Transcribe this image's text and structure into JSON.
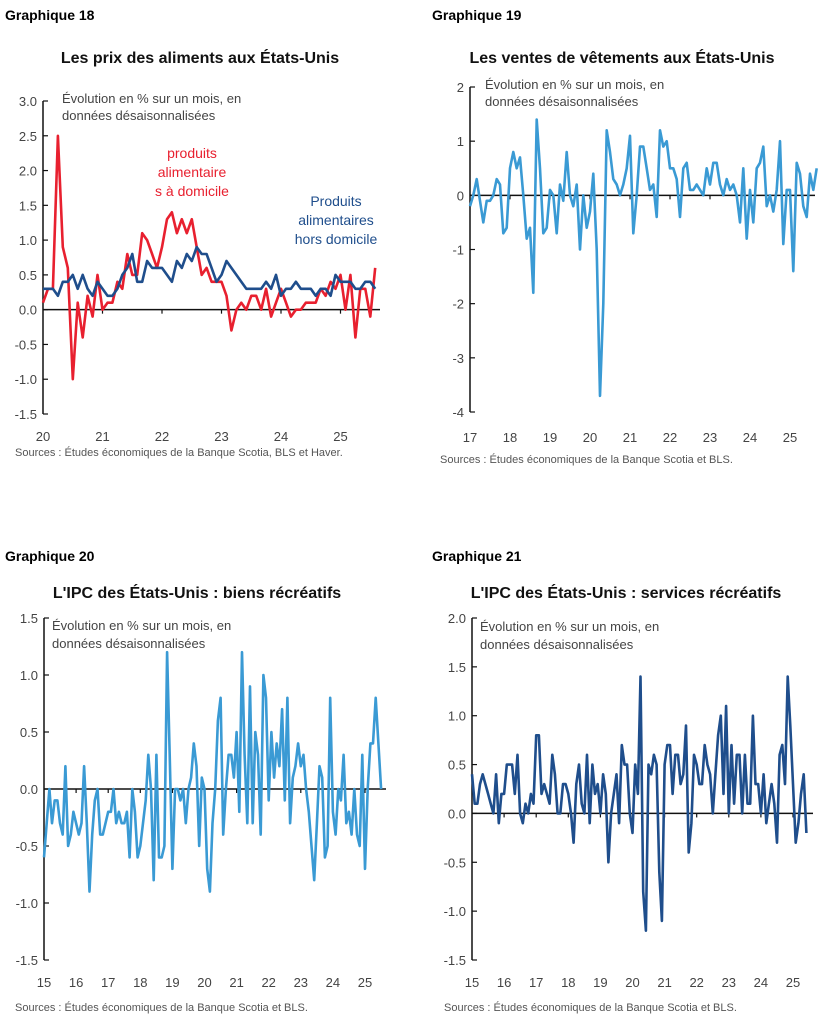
{
  "chart_data": [
    {
      "type": "line",
      "heading": "Graphique 18",
      "title": "Les prix des aliments aux États-Unis",
      "subtitle_lines": [
        "Évolution en % sur un mois, en",
        "données désaisonnalisées"
      ],
      "source": "Sources : Études économiques de la Banque Scotia, BLS et Haver.",
      "x_start": "2020-01",
      "x_frequency": "monthly",
      "x_tick_labels": [
        "20",
        "21",
        "22",
        "23",
        "24",
        "25"
      ],
      "y_tick_labels": [
        "3.0",
        "2.5",
        "2.0",
        "1.5",
        "1.0",
        "0.5",
        "0.0",
        "-0.5",
        "-1.0",
        "-1.5"
      ],
      "ylim": [
        -1.5,
        3.0
      ],
      "grid": false,
      "series": [
        {
          "name_lines": [
            "produits",
            "alimentaire",
            "s à domicile"
          ],
          "color": "#e8202f",
          "values": [
            0.1,
            0.3,
            0.3,
            2.5,
            0.9,
            0.6,
            -1.0,
            0.1,
            -0.4,
            0.2,
            -0.1,
            0.5,
            0.0,
            0.1,
            0.1,
            0.4,
            0.3,
            0.8,
            0.5,
            0.5,
            1.1,
            1.0,
            0.8,
            0.6,
            0.9,
            1.3,
            1.4,
            1.1,
            1.3,
            1.1,
            1.3,
            0.9,
            0.5,
            0.6,
            0.4,
            0.4,
            0.4,
            0.2,
            -0.3,
            0.0,
            0.1,
            0.0,
            0.2,
            0.2,
            0.0,
            0.3,
            -0.1,
            0.1,
            0.3,
            0.1,
            -0.1,
            0.0,
            0.0,
            0.1,
            0.1,
            0.1,
            0.3,
            0.2,
            0.4,
            0.3,
            0.5,
            0.0,
            0.5,
            -0.4,
            0.3,
            0.3,
            -0.1,
            0.6
          ]
        },
        {
          "name_lines": [
            "Produits",
            "alimentaires",
            "hors domicile"
          ],
          "color": "#1f4e8c",
          "values": [
            0.3,
            0.3,
            0.3,
            0.2,
            0.4,
            0.4,
            0.5,
            0.3,
            0.5,
            0.3,
            0.2,
            0.4,
            0.3,
            0.2,
            0.2,
            0.3,
            0.5,
            0.6,
            0.8,
            0.4,
            0.4,
            0.7,
            0.6,
            0.6,
            0.6,
            0.5,
            0.4,
            0.7,
            0.6,
            0.8,
            0.7,
            0.9,
            0.8,
            0.8,
            0.6,
            0.4,
            0.5,
            0.7,
            0.6,
            0.5,
            0.4,
            0.3,
            0.3,
            0.3,
            0.3,
            0.4,
            0.3,
            0.5,
            0.2,
            0.3,
            0.3,
            0.4,
            0.3,
            0.3,
            0.3,
            0.2,
            0.3,
            0.3,
            0.2,
            0.5,
            0.4,
            0.4,
            0.4,
            0.3,
            0.3,
            0.4,
            0.4,
            0.3
          ]
        }
      ]
    },
    {
      "type": "line",
      "heading": "Graphique 19",
      "title": "Les ventes de vêtements aux États-Unis",
      "subtitle_lines": [
        "Évolution en % sur un mois, en",
        "données désaisonnalisées"
      ],
      "source": "Sources : Études économiques de la Banque Scotia et BLS.",
      "x_start": "2017-01",
      "x_frequency": "monthly",
      "x_tick_labels": [
        "17",
        "18",
        "19",
        "20",
        "21",
        "22",
        "23",
        "24",
        "25"
      ],
      "y_tick_labels": [
        "2",
        "1",
        "0",
        "-1",
        "-2",
        "-3",
        "-4"
      ],
      "ylim": [
        -4,
        2
      ],
      "grid": false,
      "series": [
        {
          "color": "#3a9ad4",
          "values": [
            -0.2,
            0.0,
            0.3,
            -0.1,
            -0.5,
            -0.1,
            -0.1,
            0.0,
            0.3,
            0.2,
            -0.7,
            -0.6,
            0.5,
            0.8,
            0.5,
            0.7,
            0.0,
            -0.8,
            -0.6,
            -1.8,
            1.4,
            0.5,
            -0.7,
            -0.6,
            0.1,
            0.0,
            -0.7,
            0.2,
            -0.1,
            0.8,
            0.0,
            -0.2,
            0.2,
            -1.0,
            0.0,
            -0.6,
            -0.3,
            0.4,
            -1.0,
            -3.7,
            -2.0,
            1.2,
            0.8,
            0.3,
            0.2,
            0.0,
            0.2,
            0.5,
            1.1,
            -0.7,
            0.0,
            0.9,
            0.9,
            0.5,
            0.1,
            0.2,
            -0.4,
            1.2,
            0.9,
            1.0,
            0.5,
            0.5,
            0.3,
            -0.4,
            0.5,
            0.6,
            0.1,
            0.1,
            0.2,
            0.1,
            0.0,
            0.5,
            0.2,
            0.6,
            0.6,
            0.2,
            0.0,
            0.3,
            0.1,
            0.2,
            0.0,
            -0.5,
            0.5,
            -0.8,
            0.1,
            -0.5,
            0.5,
            0.6,
            0.9,
            -0.2,
            0.0,
            -0.3,
            0.1,
            1.0,
            -0.9,
            0.1,
            0.1,
            -1.4,
            0.6,
            0.4,
            -0.2,
            -0.4,
            0.4,
            0.1,
            0.5
          ]
        }
      ]
    },
    {
      "type": "line",
      "heading": "Graphique 20",
      "title": "L'IPC des États-Unis : biens récréatifs",
      "subtitle_lines": [
        "Évolution en % sur un mois, en",
        "données désaisonnalisées"
      ],
      "source": "Sources : Études économiques de la Banque Scotia et BLS.",
      "x_start": "2015-01",
      "x_frequency": "monthly",
      "x_tick_labels": [
        "15",
        "16",
        "17",
        "18",
        "19",
        "20",
        "21",
        "22",
        "23",
        "24",
        "25"
      ],
      "y_tick_labels": [
        "1.5",
        "1.0",
        "0.5",
        "0.0",
        "-0.5",
        "-1.0",
        "-1.5"
      ],
      "ylim": [
        -1.5,
        1.5
      ],
      "grid": false,
      "series": [
        {
          "color": "#3a9ad4",
          "values": [
            -0.6,
            -0.3,
            0.0,
            -0.3,
            -0.1,
            -0.1,
            -0.3,
            -0.4,
            0.2,
            -0.5,
            -0.4,
            -0.2,
            -0.3,
            -0.4,
            -0.3,
            0.2,
            -0.3,
            -0.9,
            -0.4,
            -0.1,
            0.0,
            -0.4,
            -0.4,
            -0.3,
            -0.2,
            -0.2,
            0.0,
            -0.3,
            -0.2,
            -0.3,
            -0.3,
            -0.2,
            -0.6,
            0.0,
            -0.2,
            -0.6,
            -0.5,
            -0.3,
            -0.1,
            0.3,
            0.0,
            -0.8,
            0.3,
            -0.6,
            -0.6,
            -0.5,
            1.2,
            0.3,
            -0.7,
            0.0,
            0.0,
            -0.1,
            0.0,
            -0.3,
            0.0,
            0.1,
            0.4,
            0.2,
            -0.5,
            0.1,
            0.0,
            -0.7,
            -0.9,
            -0.3,
            0.0,
            0.6,
            0.8,
            -0.4,
            0.0,
            0.3,
            0.3,
            0.1,
            0.5,
            -0.2,
            1.2,
            0.3,
            -0.3,
            0.9,
            -0.3,
            0.5,
            0.3,
            -0.4,
            1.0,
            0.8,
            -0.1,
            0.5,
            0.1,
            0.4,
            0.2,
            0.7,
            -0.1,
            0.8,
            -0.3,
            0.1,
            0.2,
            0.4,
            0.2,
            0.3,
            0.0,
            -0.2,
            -0.5,
            -0.8,
            -0.3,
            0.2,
            0.1,
            -0.6,
            -0.5,
            0.8,
            -0.2,
            -0.4,
            0.0,
            -0.1,
            0.3,
            -0.3,
            -0.2,
            -0.4,
            0.0,
            -0.4,
            -0.5,
            0.3,
            -0.7,
            0.0,
            0.4,
            0.4,
            0.8,
            0.4,
            0.0
          ]
        }
      ]
    },
    {
      "type": "line",
      "heading": "Graphique 21",
      "title": "L'IPC des États-Unis : services récréatifs",
      "subtitle_lines": [
        "Évolution en % sur un mois, en",
        "données désaisonnalisées"
      ],
      "source": "Sources : Études économiques de la Banque Scotia et BLS.",
      "x_start": "2015-01",
      "x_frequency": "monthly",
      "x_tick_labels": [
        "15",
        "16",
        "17",
        "18",
        "19",
        "20",
        "21",
        "22",
        "23",
        "24",
        "25"
      ],
      "y_tick_labels": [
        "2.0",
        "1.5",
        "1.0",
        "0.5",
        "0.0",
        "-0.5",
        "-1.0",
        "-1.5"
      ],
      "ylim": [
        -1.5,
        2.0
      ],
      "grid": false,
      "series": [
        {
          "color": "#1f4e8c",
          "values": [
            0.4,
            0.1,
            0.1,
            0.3,
            0.4,
            0.3,
            0.2,
            0.1,
            0.0,
            0.4,
            -0.1,
            0.2,
            0.2,
            0.5,
            0.5,
            0.5,
            0.2,
            0.6,
            0.0,
            -0.1,
            0.1,
            0.0,
            0.2,
            0.1,
            0.8,
            0.8,
            0.2,
            0.3,
            0.2,
            0.1,
            0.6,
            0.4,
            0.0,
            0.0,
            0.3,
            0.3,
            0.2,
            0.0,
            -0.3,
            0.3,
            0.5,
            0.1,
            0.0,
            0.6,
            -0.1,
            0.5,
            0.2,
            0.3,
            0.0,
            0.4,
            0.2,
            -0.5,
            0.0,
            0.2,
            0.4,
            -0.1,
            0.7,
            0.5,
            0.5,
            0.0,
            -0.2,
            0.5,
            0.2,
            1.4,
            -0.8,
            -1.2,
            0.5,
            0.4,
            0.6,
            0.5,
            -0.6,
            -1.1,
            0.5,
            0.7,
            0.7,
            0.2,
            0.6,
            0.6,
            0.3,
            0.4,
            0.9,
            -0.4,
            -0.1,
            0.6,
            0.5,
            0.3,
            0.3,
            0.7,
            0.5,
            0.4,
            0.0,
            0.4,
            0.8,
            1.0,
            0.2,
            1.1,
            0.0,
            0.7,
            0.1,
            0.6,
            0.6,
            0.0,
            0.6,
            0.1,
            0.1,
            1.0,
            0.3,
            0.3,
            0.0,
            0.4,
            -0.1,
            0.1,
            0.3,
            0.1,
            -0.3,
            0.6,
            0.7,
            0.3,
            1.4,
            0.9,
            0.3,
            -0.3,
            -0.1,
            0.2,
            0.4,
            -0.2
          ]
        }
      ]
    }
  ]
}
